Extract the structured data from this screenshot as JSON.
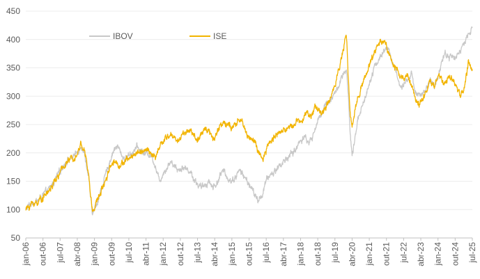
{
  "chart_data": {
    "type": "line",
    "title": "",
    "xlabel": "",
    "ylabel": "",
    "ylim": [
      50,
      450
    ],
    "yticks": [
      50,
      100,
      150,
      200,
      250,
      300,
      350,
      400,
      450
    ],
    "xlim": [
      0,
      234
    ],
    "x_unit": "months since jan-06",
    "x_ticks": [
      {
        "label": "jan-06",
        "month": 0
      },
      {
        "label": "out-06",
        "month": 9
      },
      {
        "label": "jul-07",
        "month": 18
      },
      {
        "label": "abr-08",
        "month": 27
      },
      {
        "label": "jan-09",
        "month": 36
      },
      {
        "label": "out-09",
        "month": 45
      },
      {
        "label": "jul-10",
        "month": 54
      },
      {
        "label": "abr-11",
        "month": 63
      },
      {
        "label": "jan-12",
        "month": 72
      },
      {
        "label": "out-12",
        "month": 81
      },
      {
        "label": "jul-13",
        "month": 90
      },
      {
        "label": "abr-14",
        "month": 99
      },
      {
        "label": "jan-15",
        "month": 108
      },
      {
        "label": "out-15",
        "month": 117
      },
      {
        "label": "jul-16",
        "month": 126
      },
      {
        "label": "abr-17",
        "month": 135
      },
      {
        "label": "jan-18",
        "month": 144
      },
      {
        "label": "out-18",
        "month": 153
      },
      {
        "label": "jul-19",
        "month": 162
      },
      {
        "label": "abr-20",
        "month": 171
      },
      {
        "label": "jan-21",
        "month": 180
      },
      {
        "label": "out-21",
        "month": 189
      },
      {
        "label": "jul-22",
        "month": 198
      },
      {
        "label": "abr-23",
        "month": 207
      },
      {
        "label": "jan-24",
        "month": 216
      },
      {
        "label": "out-24",
        "month": 225
      },
      {
        "label": "jul-25",
        "month": 234
      }
    ],
    "legend_position": "top-left",
    "series": [
      {
        "name": "IBOV",
        "color": "#c8c8c8",
        "points": [
          [
            0,
            100
          ],
          [
            3,
            112
          ],
          [
            6,
            115
          ],
          [
            9,
            125
          ],
          [
            12,
            135
          ],
          [
            15,
            150
          ],
          [
            18,
            168
          ],
          [
            21,
            185
          ],
          [
            24,
            192
          ],
          [
            27,
            200
          ],
          [
            29,
            215
          ],
          [
            31,
            195
          ],
          [
            33,
            155
          ],
          [
            34,
            118
          ],
          [
            35,
            92
          ],
          [
            36,
            100
          ],
          [
            38,
            118
          ],
          [
            40,
            140
          ],
          [
            42,
            162
          ],
          [
            44,
            185
          ],
          [
            46,
            205
          ],
          [
            48,
            212
          ],
          [
            50,
            198
          ],
          [
            52,
            188
          ],
          [
            54,
            197
          ],
          [
            56,
            202
          ],
          [
            58,
            210
          ],
          [
            60,
            206
          ],
          [
            62,
            200
          ],
          [
            64,
            198
          ],
          [
            66,
            195
          ],
          [
            68,
            176
          ],
          [
            70,
            150
          ],
          [
            72,
            165
          ],
          [
            74,
            175
          ],
          [
            76,
            185
          ],
          [
            78,
            178
          ],
          [
            80,
            170
          ],
          [
            82,
            175
          ],
          [
            84,
            172
          ],
          [
            86,
            168
          ],
          [
            88,
            155
          ],
          [
            90,
            145
          ],
          [
            92,
            138
          ],
          [
            94,
            145
          ],
          [
            96,
            150
          ],
          [
            98,
            140
          ],
          [
            100,
            145
          ],
          [
            102,
            162
          ],
          [
            104,
            168
          ],
          [
            106,
            155
          ],
          [
            108,
            150
          ],
          [
            110,
            158
          ],
          [
            112,
            170
          ],
          [
            114,
            160
          ],
          [
            116,
            150
          ],
          [
            118,
            140
          ],
          [
            120,
            125
          ],
          [
            122,
            115
          ],
          [
            124,
            128
          ],
          [
            126,
            150
          ],
          [
            128,
            162
          ],
          [
            130,
            165
          ],
          [
            132,
            175
          ],
          [
            134,
            180
          ],
          [
            136,
            188
          ],
          [
            138,
            195
          ],
          [
            140,
            200
          ],
          [
            142,
            210
          ],
          [
            144,
            222
          ],
          [
            146,
            230
          ],
          [
            148,
            218
          ],
          [
            150,
            225
          ],
          [
            152,
            248
          ],
          [
            154,
            262
          ],
          [
            156,
            280
          ],
          [
            158,
            290
          ],
          [
            160,
            295
          ],
          [
            162,
            305
          ],
          [
            164,
            318
          ],
          [
            166,
            335
          ],
          [
            168,
            345
          ],
          [
            169,
            300
          ],
          [
            170,
            232
          ],
          [
            171,
            195
          ],
          [
            172,
            210
          ],
          [
            174,
            262
          ],
          [
            176,
            280
          ],
          [
            178,
            298
          ],
          [
            180,
            325
          ],
          [
            182,
            345
          ],
          [
            184,
            360
          ],
          [
            186,
            370
          ],
          [
            188,
            380
          ],
          [
            190,
            385
          ],
          [
            192,
            360
          ],
          [
            194,
            345
          ],
          [
            196,
            318
          ],
          [
            198,
            315
          ],
          [
            200,
            330
          ],
          [
            202,
            338
          ],
          [
            204,
            310
          ],
          [
            206,
            305
          ],
          [
            208,
            300
          ],
          [
            210,
            315
          ],
          [
            212,
            325
          ],
          [
            214,
            318
          ],
          [
            216,
            335
          ],
          [
            218,
            362
          ],
          [
            220,
            375
          ],
          [
            222,
            368
          ],
          [
            224,
            370
          ],
          [
            226,
            372
          ],
          [
            228,
            382
          ],
          [
            230,
            392
          ],
          [
            232,
            410
          ],
          [
            234,
            422
          ]
        ]
      },
      {
        "name": "ISE",
        "color": "#f2b400",
        "points": [
          [
            0,
            100
          ],
          [
            3,
            110
          ],
          [
            6,
            113
          ],
          [
            9,
            122
          ],
          [
            12,
            132
          ],
          [
            15,
            148
          ],
          [
            18,
            165
          ],
          [
            21,
            182
          ],
          [
            24,
            190
          ],
          [
            27,
            198
          ],
          [
            29,
            218
          ],
          [
            31,
            200
          ],
          [
            33,
            160
          ],
          [
            34,
            122
          ],
          [
            35,
            98
          ],
          [
            36,
            105
          ],
          [
            38,
            120
          ],
          [
            40,
            138
          ],
          [
            42,
            155
          ],
          [
            44,
            175
          ],
          [
            46,
            185
          ],
          [
            48,
            182
          ],
          [
            50,
            178
          ],
          [
            52,
            185
          ],
          [
            54,
            190
          ],
          [
            56,
            195
          ],
          [
            58,
            200
          ],
          [
            60,
            204
          ],
          [
            62,
            202
          ],
          [
            64,
            205
          ],
          [
            66,
            198
          ],
          [
            68,
            190
          ],
          [
            70,
            210
          ],
          [
            72,
            220
          ],
          [
            74,
            228
          ],
          [
            76,
            232
          ],
          [
            78,
            226
          ],
          [
            80,
            222
          ],
          [
            82,
            232
          ],
          [
            84,
            238
          ],
          [
            86,
            240
          ],
          [
            88,
            232
          ],
          [
            90,
            220
          ],
          [
            92,
            230
          ],
          [
            94,
            245
          ],
          [
            96,
            240
          ],
          [
            98,
            225
          ],
          [
            100,
            235
          ],
          [
            102,
            248
          ],
          [
            104,
            255
          ],
          [
            106,
            250
          ],
          [
            108,
            242
          ],
          [
            110,
            248
          ],
          [
            112,
            260
          ],
          [
            114,
            250
          ],
          [
            116,
            232
          ],
          [
            118,
            225
          ],
          [
            120,
            220
          ],
          [
            122,
            200
          ],
          [
            124,
            185
          ],
          [
            126,
            205
          ],
          [
            128,
            220
          ],
          [
            130,
            228
          ],
          [
            132,
            235
          ],
          [
            134,
            238
          ],
          [
            136,
            240
          ],
          [
            138,
            245
          ],
          [
            140,
            250
          ],
          [
            142,
            255
          ],
          [
            144,
            258
          ],
          [
            146,
            268
          ],
          [
            148,
            270
          ],
          [
            150,
            266
          ],
          [
            152,
            282
          ],
          [
            154,
            275
          ],
          [
            156,
            270
          ],
          [
            158,
            285
          ],
          [
            160,
            300
          ],
          [
            162,
            320
          ],
          [
            164,
            350
          ],
          [
            166,
            375
          ],
          [
            168,
            410
          ],
          [
            169,
            330
          ],
          [
            170,
            268
          ],
          [
            171,
            245
          ],
          [
            172,
            262
          ],
          [
            174,
            300
          ],
          [
            176,
            318
          ],
          [
            178,
            338
          ],
          [
            180,
            352
          ],
          [
            182,
            372
          ],
          [
            184,
            388
          ],
          [
            186,
            398
          ],
          [
            188,
            395
          ],
          [
            190,
            380
          ],
          [
            192,
            360
          ],
          [
            194,
            348
          ],
          [
            196,
            335
          ],
          [
            198,
            330
          ],
          [
            200,
            338
          ],
          [
            202,
            320
          ],
          [
            204,
            300
          ],
          [
            206,
            285
          ],
          [
            208,
            298
          ],
          [
            210,
            310
          ],
          [
            212,
            325
          ],
          [
            214,
            318
          ],
          [
            216,
            335
          ],
          [
            218,
            330
          ],
          [
            220,
            318
          ],
          [
            222,
            335
          ],
          [
            224,
            328
          ],
          [
            226,
            315
          ],
          [
            228,
            300
          ],
          [
            230,
            318
          ],
          [
            232,
            362
          ],
          [
            234,
            345
          ]
        ]
      }
    ]
  }
}
